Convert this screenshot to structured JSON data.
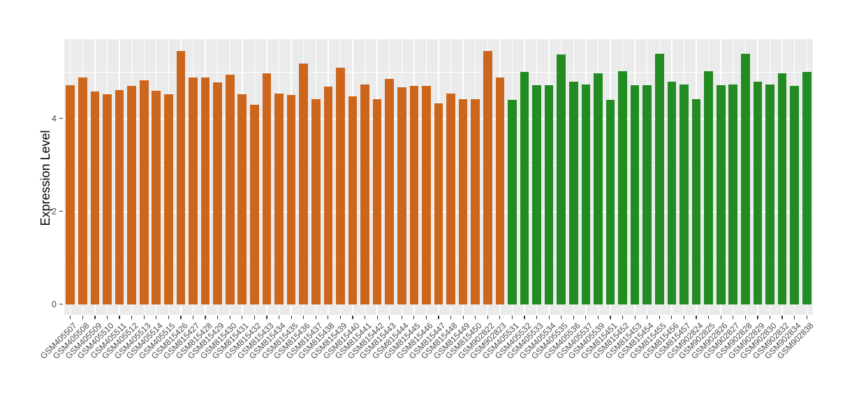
{
  "chart_data": {
    "type": "bar",
    "title": "",
    "xlabel": "",
    "ylabel": "Expression Level",
    "ylim": [
      -0.23,
      5.71
    ],
    "yticks": [
      0,
      2,
      4
    ],
    "minor_yticks": [
      1,
      3,
      5
    ],
    "grid": true,
    "legend_position": "none",
    "panel_bg": "#EBEBEB",
    "grid_color": "#FFFFFF",
    "tick_color": "#333333",
    "axis_text_color": "#4a4a4a",
    "group_split_index": 36,
    "colors": {
      "left_group": "#CD661D",
      "right_group": "#228B22"
    },
    "categories": [
      "GSM405507",
      "GSM405508",
      "GSM405509",
      "GSM405510",
      "GSM405511",
      "GSM405512",
      "GSM405513",
      "GSM405514",
      "GSM405515",
      "GSM815426",
      "GSM815427",
      "GSM815428",
      "GSM815429",
      "GSM815430",
      "GSM815431",
      "GSM815432",
      "GSM815433",
      "GSM815434",
      "GSM815435",
      "GSM815436",
      "GSM815437",
      "GSM815438",
      "GSM815439",
      "GSM815440",
      "GSM815441",
      "GSM815442",
      "GSM815443",
      "GSM815444",
      "GSM815445",
      "GSM815446",
      "GSM815447",
      "GSM815448",
      "GSM815449",
      "GSM815450",
      "GSM902822",
      "GSM902823",
      "GSM405531",
      "GSM405532",
      "GSM405533",
      "GSM405534",
      "GSM405535",
      "GSM405536",
      "GSM405537",
      "GSM405539",
      "GSM815451",
      "GSM815452",
      "GSM815453",
      "GSM815454",
      "GSM815455",
      "GSM815456",
      "GSM815457",
      "GSM902824",
      "GSM902825",
      "GSM902826",
      "GSM902827",
      "GSM902828",
      "GSM902829",
      "GSM902830",
      "GSM902832",
      "GSM902834",
      "GSM902838"
    ],
    "values": [
      4.71,
      4.88,
      4.58,
      4.52,
      4.61,
      4.7,
      4.82,
      4.59,
      4.52,
      5.45,
      4.88,
      4.88,
      4.78,
      4.95,
      4.52,
      4.29,
      4.97,
      4.53,
      4.51,
      5.19,
      4.41,
      4.68,
      5.09,
      4.47,
      4.73,
      4.41,
      4.85,
      4.67,
      4.7,
      4.7,
      4.33,
      4.53,
      4.42,
      4.42,
      5.45,
      4.88,
      4.4,
      5.01,
      4.71,
      4.72,
      5.38,
      4.8,
      4.73,
      4.98,
      4.4,
      5.02,
      4.71,
      4.72,
      5.39,
      4.8,
      4.74,
      4.42,
      5.02,
      4.71,
      4.73,
      5.39,
      4.8,
      4.73,
      4.97,
      4.7,
      5.01
    ]
  }
}
